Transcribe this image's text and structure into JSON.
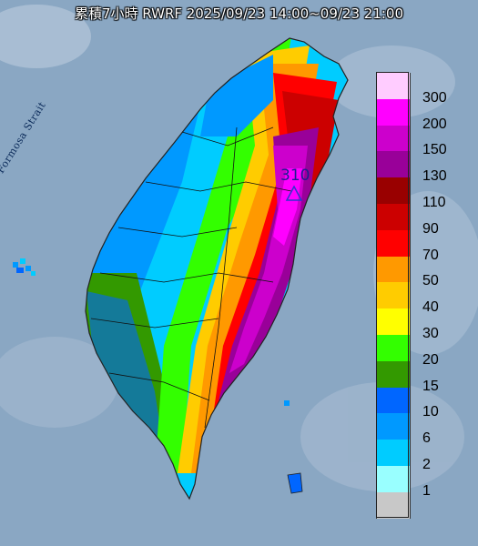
{
  "title": "累積7小時 RWRF 2025/09/23 14:00~09/23 21:00",
  "strait_label": "Formosa Strait",
  "peak_value": "310",
  "colors": {
    "ocean": "#7f9fbf",
    "land_shade": "#a6b8c6"
  },
  "legend": [
    {
      "label": "300",
      "color": "#ffccff"
    },
    {
      "label": "200",
      "color": "#ff00ff"
    },
    {
      "label": "150",
      "color": "#cc00cc"
    },
    {
      "label": "130",
      "color": "#990099"
    },
    {
      "label": "110",
      "color": "#990000"
    },
    {
      "label": "90",
      "color": "#cc0000"
    },
    {
      "label": "70",
      "color": "#ff0000"
    },
    {
      "label": "50",
      "color": "#ff9900"
    },
    {
      "label": "40",
      "color": "#ffcc00"
    },
    {
      "label": "30",
      "color": "#ffff00"
    },
    {
      "label": "20",
      "color": "#33ff00"
    },
    {
      "label": "15",
      "color": "#339900"
    },
    {
      "label": "10",
      "color": "#0066ff"
    },
    {
      "label": "6",
      "color": "#0099ff"
    },
    {
      "label": "2",
      "color": "#00ccff"
    },
    {
      "label": "1",
      "color": "#99ffff"
    },
    {
      "label": "",
      "color": "#c8c8c8"
    }
  ]
}
